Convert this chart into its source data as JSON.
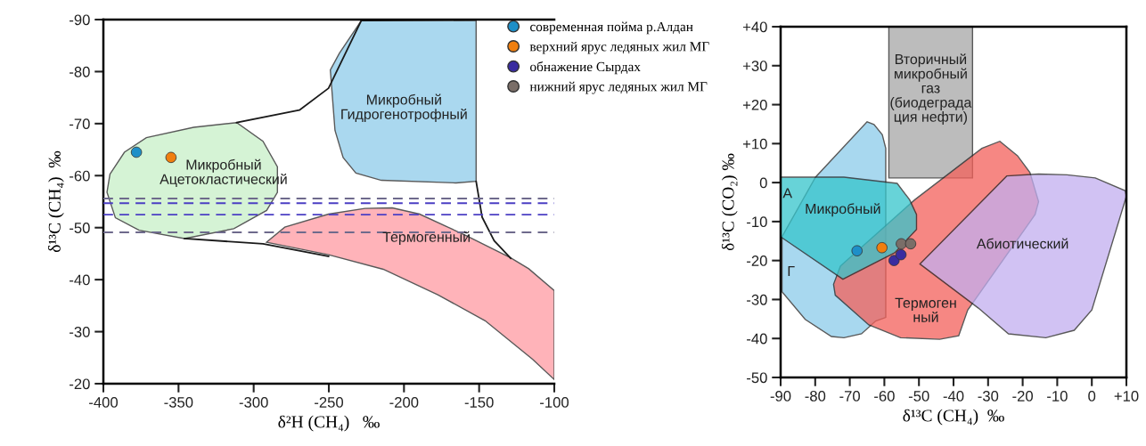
{
  "chart_data": [
    {
      "type": "scatter",
      "xlabel": "δ²H (CH₄)   ‰",
      "ylabel": "δ¹³C (CH₄)  ‰",
      "xlim": [
        -400,
        -100
      ],
      "ylim": [
        -20,
        -90
      ],
      "xticks": [
        -400,
        -350,
        -300,
        -250,
        -200,
        -150,
        -100
      ],
      "yticks": [
        -90,
        -80,
        -70,
        -60,
        -50,
        -40,
        -30,
        -20
      ],
      "grid": false,
      "legend": false,
      "series": [
        {
          "type": "area",
          "color": "#c8f0c8",
          "x": [
            -395.6,
            -386,
            -371.4,
            -339.9,
            -311.3,
            -293.8,
            -284.2,
            -284.2,
            -291.4,
            -313.2,
            -346,
            -376.2,
            -392,
            -397.6
          ],
          "values": [
            -60.3,
            -64.5,
            -67.3,
            -69.3,
            -70.2,
            -66.6,
            -61.7,
            -56.8,
            -53.3,
            -49.8,
            -47.9,
            -49.5,
            -51.9,
            -56.8
          ]
        },
        {
          "type": "area",
          "color": "#8ecbea",
          "x": [
            -249,
            -243,
            -228.4,
            -152,
            -152,
            -165.4,
            -215,
            -232,
            -240.5,
            -245.9
          ],
          "values": [
            -80.3,
            -83.5,
            -89.8,
            -89.8,
            -58.9,
            -58.6,
            -59.1,
            -60.5,
            -63.5,
            -68.7
          ]
        },
        {
          "type": "area",
          "color": "#ff9aa2",
          "x": [
            -291.4,
            -279.3,
            -250.2,
            -226,
            -207.8,
            -189.6,
            -158.1,
            -129,
            -117,
            -100,
            -100,
            -114.5,
            -146,
            -177.5,
            -213.8,
            -250.2
          ],
          "values": [
            -47.2,
            -50.1,
            -52.6,
            -53.7,
            -53.8,
            -52.6,
            -48.4,
            -44.2,
            -42.1,
            -37.9,
            -20.8,
            -24.7,
            -32.1,
            -37.1,
            -42,
            -44.8
          ]
        },
        {
          "type": "line",
          "color": "#1a1a1a",
          "x": [
            -311.3,
            -269.6,
            -250.2,
            -228.4,
            -152,
            null,
            -152,
            -148,
            -140,
            -129,
            null,
            -346,
            -293.8,
            -250.2
          ],
          "values": [
            -70.2,
            -72.6,
            -76.8,
            -89.8,
            -90,
            null,
            -58.9,
            -52,
            -47.5,
            -44.1,
            null,
            -47.9,
            -46.9,
            -44.5
          ]
        },
        {
          "marker": "circle",
          "color": "#1e8fc8",
          "x": [
            -378
          ],
          "values": [
            -64.5
          ]
        },
        {
          "marker": "circle",
          "color": "#f07f0f",
          "x": [
            -355
          ],
          "values": [
            -63.5
          ]
        }
      ],
      "ref_lines": [
        {
          "axis": "y",
          "value": -55.6,
          "color": "#6e6a8c",
          "line_style": "dashed"
        },
        {
          "axis": "y",
          "value": -54.7,
          "color": "#4b3fc4",
          "line_style": "dashed"
        },
        {
          "axis": "y",
          "value": -52.5,
          "color": "#4b3fc4",
          "line_style": "dashed"
        },
        {
          "axis": "y",
          "value": -49.1,
          "color": "#6e6a8c",
          "line_style": "dashed"
        }
      ],
      "annotations": [
        "Микробный\nАцетокластический",
        "Микробный\nГидрогенотрофный",
        "Термогенный"
      ]
    },
    {
      "type": "scatter",
      "xlabel": "δ¹³C (CH₄)  ‰",
      "ylabel": "δ¹³C (CO₂) ‰",
      "xlim": [
        -90,
        10
      ],
      "ylim": [
        -50,
        40
      ],
      "xticks": [
        -90,
        -80,
        -70,
        -60,
        -50,
        -40,
        -30,
        -20,
        -10,
        0,
        {
          "value": 10,
          "label": "+10"
        }
      ],
      "yticks": [
        -50,
        -40,
        -30,
        -20,
        -10,
        0,
        {
          "value": 10,
          "label": "+10"
        },
        {
          "value": 20,
          "label": "+20"
        },
        {
          "value": 30,
          "label": "+30"
        },
        {
          "value": 40,
          "label": "+40"
        }
      ],
      "grid": false,
      "legend": "top left",
      "series": [
        {
          "type": "area",
          "color": "#8ccbea",
          "x": [
            -89.6,
            -79.9,
            -65,
            -63,
            -60.6,
            -59.6,
            -59.6,
            -62.5,
            -66.6,
            -71.7,
            -75.3,
            -82.9,
            -89.6
          ],
          "values": [
            -13.9,
            1.4,
            15.6,
            14.9,
            12.3,
            8.8,
            -34.6,
            -35.5,
            -38.8,
            -39.8,
            -39.5,
            -35.1,
            -28
          ]
        },
        {
          "type": "area",
          "color": "#a6a6a6",
          "x": [
            -58.7,
            -34.5,
            -34.5,
            -58.7
          ],
          "values": [
            40,
            40,
            1.2,
            1.2
          ]
        },
        {
          "type": "area",
          "color": "#f4605a",
          "x": [
            -74.7,
            -72.7,
            -51.2,
            -31.8,
            -26.6,
            -21.5,
            -17.9,
            -15.4,
            -16.4,
            -35.9,
            -38.5,
            -44,
            -55.3,
            -64.5,
            -74.2
          ],
          "values": [
            -26.1,
            -21.4,
            -4.4,
            8.8,
            10.6,
            6.9,
            2.6,
            -4.9,
            -8.2,
            -32.7,
            -39.3,
            -40.2,
            -39.8,
            -36.5,
            -28.9
          ]
        },
        {
          "type": "area",
          "color": "#35c5cc",
          "x": [
            -90,
            -71.7,
            -56.3,
            -52.7,
            -50.7,
            -50.7,
            -57,
            -72,
            -90
          ],
          "values": [
            1.4,
            1.4,
            -0.2,
            -4.4,
            -8.2,
            -12,
            -18,
            -24.8,
            -13.9
          ]
        },
        {
          "type": "area",
          "color": "#c2aef0",
          "x": [
            -49.7,
            -24.6,
            -15.4,
            -7.2,
            1,
            9.7,
            10,
            0,
            -5.1,
            -13.3,
            -24.1,
            -32.8
          ],
          "values": [
            -20.9,
            1.7,
            2.2,
            2,
            1.2,
            -2.1,
            -3.5,
            -32.7,
            -37.9,
            -39.8,
            -38.8,
            -32.2
          ]
        },
        {
          "marker": "circle",
          "name": "современная пойма р.Алдан",
          "color": "#1e8fc8",
          "x": [
            -67.9
          ],
          "values": [
            -17.5
          ]
        },
        {
          "marker": "circle",
          "name": "верхний ярус ледяных жил МГ",
          "color": "#f07f0f",
          "x": [
            -60.7
          ],
          "values": [
            -16.7
          ]
        },
        {
          "marker": "circle",
          "name": "обнажение Сырдах",
          "color": "#3a2ca0",
          "x": [
            -57.2,
            -55.2
          ],
          "values": [
            -20,
            -18.5
          ]
        },
        {
          "marker": "circle",
          "name": "нижний ярус ледяных жил МГ",
          "color": "#7a6e68",
          "x": [
            -55.1,
            -52.4
          ],
          "values": [
            -15.7,
            -15.7
          ]
        }
      ],
      "annotations": [
        "Вторичный\nмикробный\nгаз\n(биодеграда\nция нефти)",
        "А",
        "Г",
        "Микробный",
        "Термоген\nный",
        "Абиотический"
      ]
    }
  ]
}
